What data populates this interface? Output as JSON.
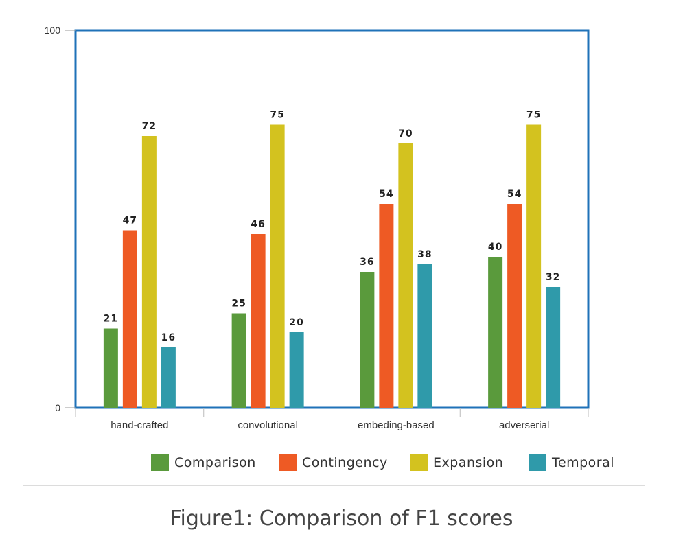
{
  "caption": "Figure1: Comparison of F1 scores",
  "chart_data": {
    "type": "bar",
    "title": "",
    "xlabel": "",
    "ylabel": "",
    "ylim": [
      0,
      100
    ],
    "yticks": [
      "0",
      "100"
    ],
    "categories": [
      "hand-crafted",
      "convolutional",
      "embeding-based",
      "adverserial"
    ],
    "series": [
      {
        "name": "Comparison",
        "color": "#5a9a3c",
        "values": [
          21,
          25,
          36,
          40
        ]
      },
      {
        "name": "Contingency",
        "color": "#ee5a24",
        "values": [
          47,
          46,
          54,
          54
        ]
      },
      {
        "name": "Expansion",
        "color": "#d3c21f",
        "values": [
          72,
          75,
          70,
          75
        ]
      },
      {
        "name": "Temporal",
        "color": "#2f9aaa",
        "values": [
          16,
          20,
          38,
          32
        ]
      }
    ],
    "data_labels": [
      [
        "21",
        "47",
        "72",
        "16"
      ],
      [
        "25",
        "46",
        "75",
        "20"
      ],
      [
        "36",
        "54",
        "70",
        "38"
      ],
      [
        "40",
        "54",
        "75",
        "32"
      ]
    ],
    "frame_color": "#1f72b8",
    "legend_position": "bottom-right"
  }
}
